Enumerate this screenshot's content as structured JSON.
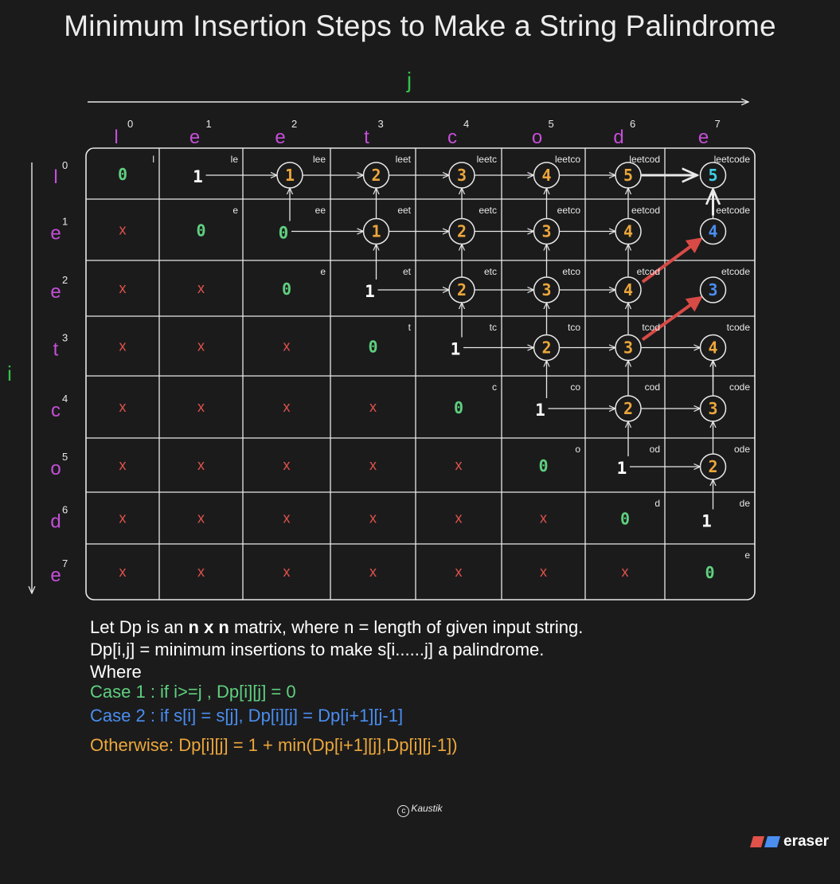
{
  "title": "Minimum Insertion Steps to Make a String Palindrome",
  "axis_j": "j",
  "axis_i": "i",
  "col_headers": [
    {
      "ch": "l",
      "idx": "0"
    },
    {
      "ch": "e",
      "idx": "1"
    },
    {
      "ch": "e",
      "idx": "2"
    },
    {
      "ch": "t",
      "idx": "3"
    },
    {
      "ch": "c",
      "idx": "4"
    },
    {
      "ch": "o",
      "idx": "5"
    },
    {
      "ch": "d",
      "idx": "6"
    },
    {
      "ch": "e",
      "idx": "7"
    }
  ],
  "row_headers": [
    {
      "ch": "l",
      "idx": "0"
    },
    {
      "ch": "e",
      "idx": "1"
    },
    {
      "ch": "e",
      "idx": "2"
    },
    {
      "ch": "t",
      "idx": "3"
    },
    {
      "ch": "c",
      "idx": "4"
    },
    {
      "ch": "o",
      "idx": "5"
    },
    {
      "ch": "d",
      "idx": "6"
    },
    {
      "ch": "e",
      "idx": "7"
    }
  ],
  "dp": [
    [
      "0",
      "1",
      "1",
      "2",
      "3",
      "4",
      "5",
      "5"
    ],
    [
      "x",
      "0",
      "0",
      "1",
      "2",
      "3",
      "4",
      "4"
    ],
    [
      "x",
      "x",
      "0",
      "1",
      "2",
      "3",
      "4",
      "3"
    ],
    [
      "x",
      "x",
      "x",
      "0",
      "1",
      "2",
      "3",
      "4"
    ],
    [
      "x",
      "x",
      "x",
      "x",
      "0",
      "1",
      "2",
      "3"
    ],
    [
      "x",
      "x",
      "x",
      "x",
      "x",
      "0",
      "1",
      "2"
    ],
    [
      "x",
      "x",
      "x",
      "x",
      "x",
      "x",
      "0",
      "1"
    ],
    [
      "x",
      "x",
      "x",
      "x",
      "x",
      "x",
      "x",
      "0"
    ]
  ],
  "substrings": [
    [
      "l",
      "le",
      "lee",
      "leet",
      "leetc",
      "leetco",
      "leetcod",
      "leetcode"
    ],
    [
      "",
      "e",
      "ee",
      "eet",
      "eetc",
      "eetco",
      "eetcod",
      "eetcode"
    ],
    [
      "",
      "",
      "e",
      "et",
      "etc",
      "etco",
      "etcod",
      "etcode"
    ],
    [
      "",
      "",
      "",
      "t",
      "tc",
      "tco",
      "tcod",
      "tcode"
    ],
    [
      "",
      "",
      "",
      "",
      "c",
      "co",
      "cod",
      "code"
    ],
    [
      "",
      "",
      "",
      "",
      "",
      "o",
      "od",
      "ode"
    ],
    [
      "",
      "",
      "",
      "",
      "",
      "",
      "d",
      "de"
    ],
    [
      "",
      "",
      "",
      "",
      "",
      "",
      "",
      "e"
    ]
  ],
  "colors": {
    "background": "#1b1b1c",
    "case1": "#5fd07e",
    "case2": "#4a8ef0",
    "otherwise": "#eca73a",
    "invalid": "#e0524a",
    "header": "#c64fd8",
    "axis_label": "#33c24a",
    "highlight_cyan": "#3fd2e6",
    "diag_arrow": "#d84a45"
  },
  "description": {
    "line1_a": "Let Dp is an ",
    "line1_b": "n x n",
    "line1_c": " matrix, where n = length of given input string.",
    "line2": "Dp[i,j] = minimum insertions to make s[i......j] a palindrome.",
    "line3": "Where",
    "case1": "Case 1 : if i>=j , Dp[i][j] = 0",
    "case2": "Case 2 : if s[i] = s[j], Dp[i][j] = Dp[i+1][j-1]",
    "otherwise": "Otherwise: Dp[i][j] = 1 + min(Dp[i+1][j],Dp[i][j-1])"
  },
  "copyright": "Kaustik",
  "brand": "eraser"
}
